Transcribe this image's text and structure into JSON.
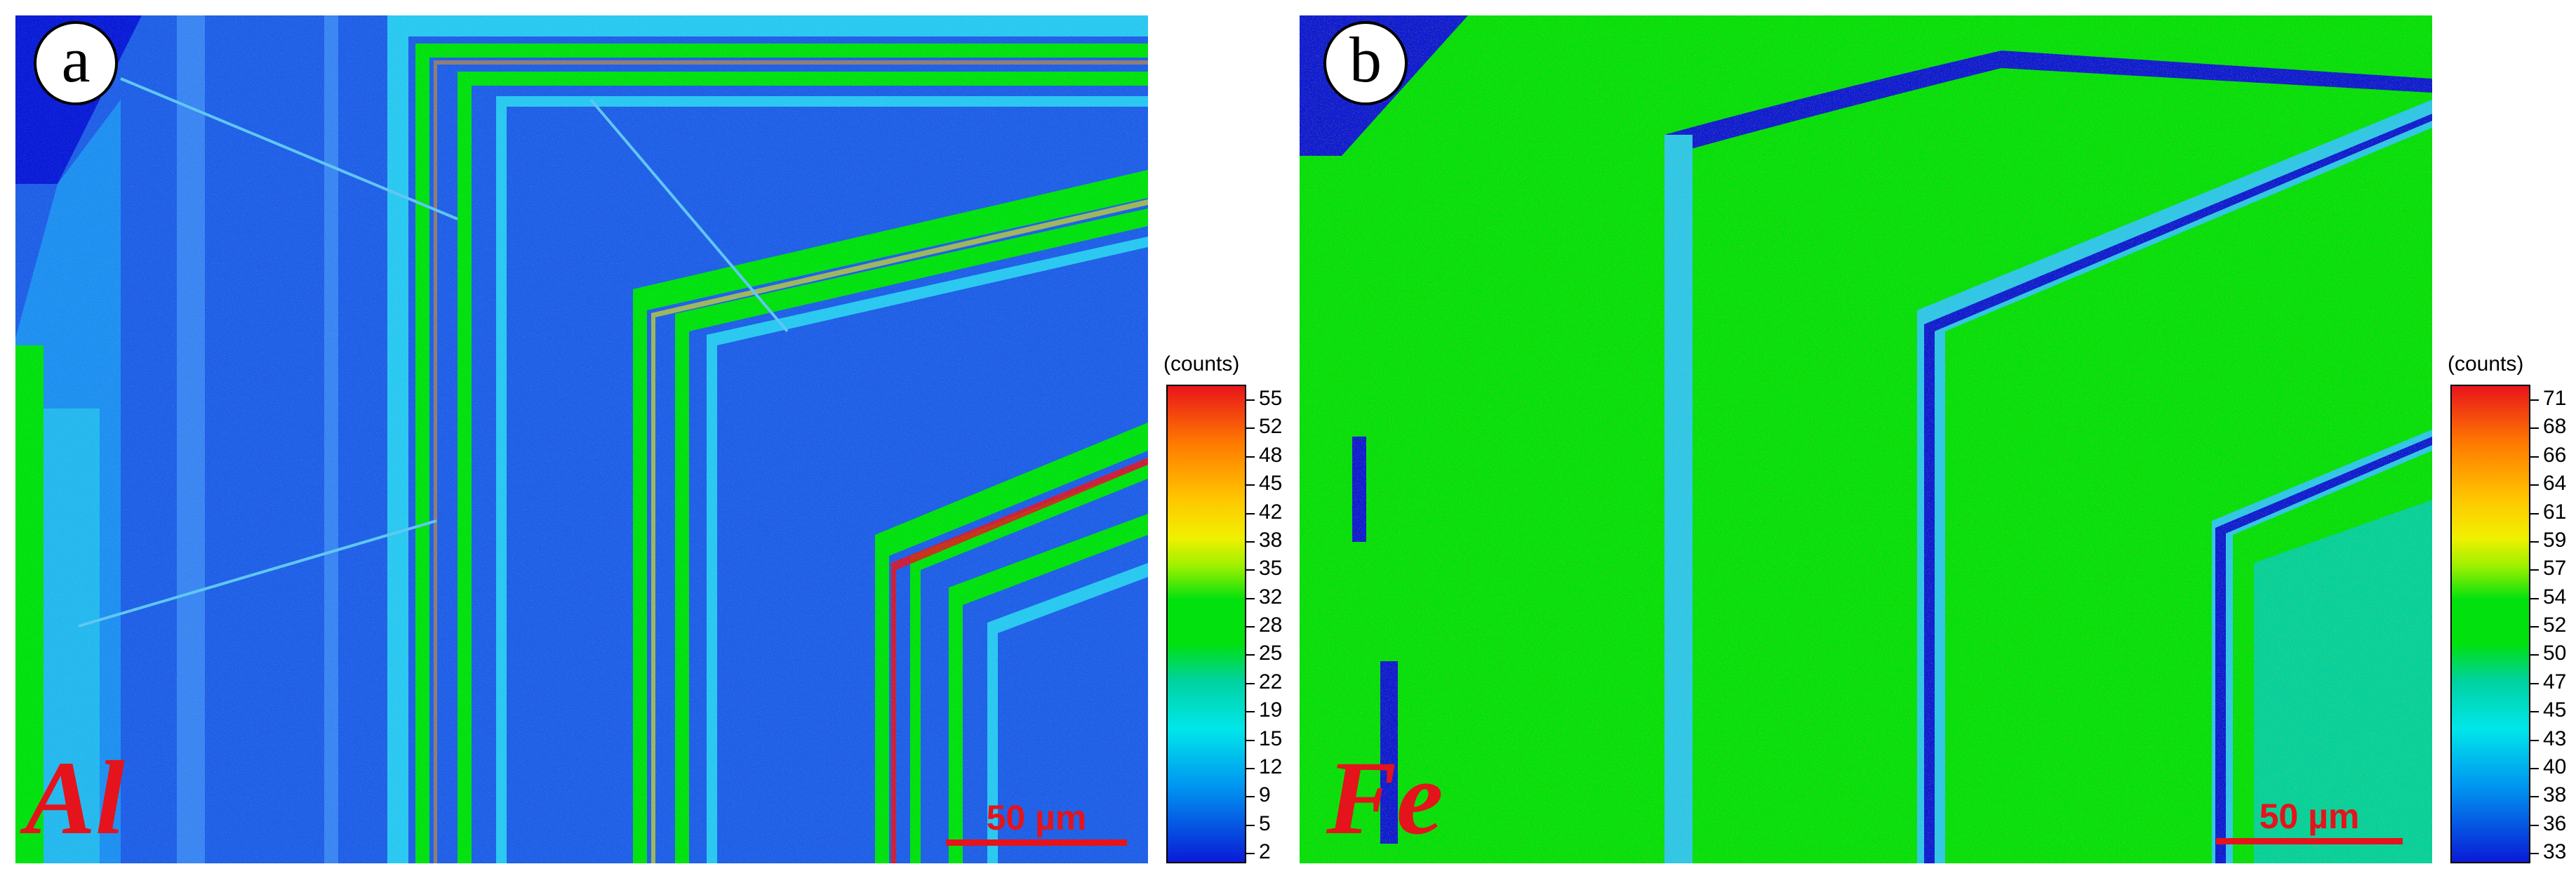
{
  "panels": [
    {
      "id": "a",
      "label": "a",
      "element": "Al",
      "scale_text": "50 µm",
      "colorbar": {
        "title": "(counts)",
        "ticks": [
          "55",
          "52",
          "48",
          "45",
          "42",
          "38",
          "35",
          "32",
          "28",
          "25",
          "22",
          "19",
          "15",
          "12",
          "9",
          "5",
          "2"
        ]
      }
    },
    {
      "id": "b",
      "label": "b",
      "element": "Fe",
      "scale_text": "50 µm",
      "colorbar": {
        "title": "(counts)",
        "ticks": [
          "71",
          "68",
          "66",
          "64",
          "61",
          "59",
          "57",
          "54",
          "52",
          "50",
          "47",
          "45",
          "43",
          "40",
          "38",
          "36",
          "33"
        ]
      }
    }
  ],
  "colors": {
    "low": "#0a1bd6",
    "mid_low": "#1f6ff0",
    "cyan": "#29c8f0",
    "green": "#00e10d",
    "yellow": "#f0f000",
    "orange": "#ff9a00",
    "high": "#e8141b",
    "label_red": "#e5131b"
  }
}
